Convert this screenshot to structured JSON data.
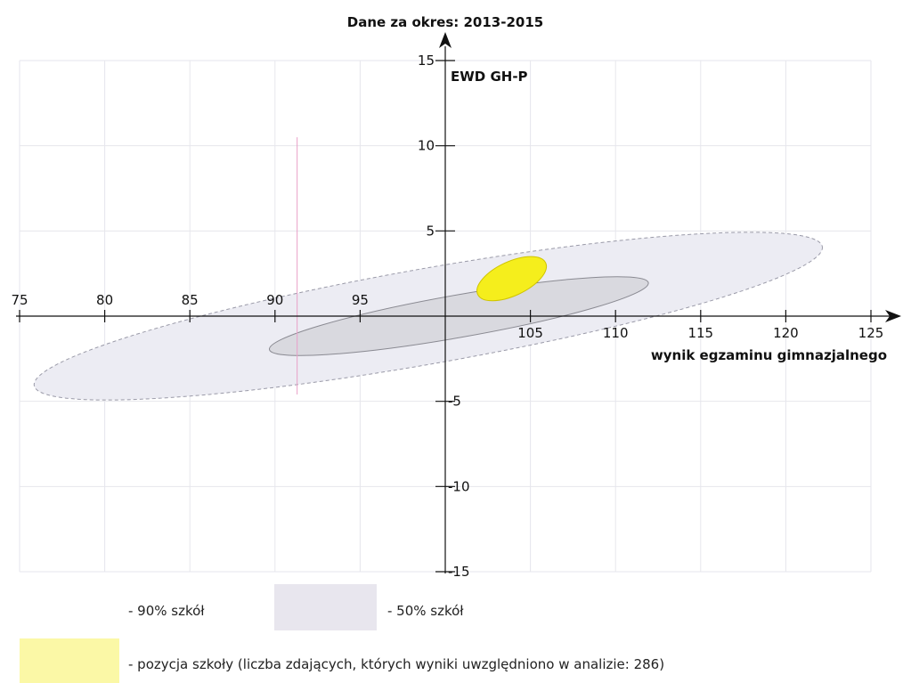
{
  "chart_data": {
    "type": "scatter",
    "title": "Dane za okres: 2013-2015",
    "xlabel": "wynik egzaminu gimnazjalnego",
    "ylabel": "EWD GH-P",
    "xlim": [
      75,
      125
    ],
    "ylim": [
      -15,
      15
    ],
    "x_ticks": [
      75,
      80,
      85,
      90,
      95,
      105,
      110,
      115,
      120,
      125
    ],
    "y_ticks": [
      15,
      10,
      5,
      -5,
      -10,
      -15
    ],
    "grid": true,
    "regions": [
      {
        "name": "90% szkół",
        "type": "ellipse",
        "cx": 99,
        "cy": 0,
        "semi_major_x": 23.5,
        "semi_minor_y": 2.8,
        "angle_deg": 10,
        "color": "#ececf3"
      },
      {
        "name": "50% szkół",
        "type": "ellipse",
        "cx": 100.8,
        "cy": 0,
        "semi_major_x": 11.3,
        "semi_minor_y": 1.25,
        "angle_deg": 10,
        "color": "#d9d9df"
      },
      {
        "name": "pozycja szkoły",
        "type": "ellipse",
        "cx": 103.9,
        "cy": 2.2,
        "semi_major_x": 2.2,
        "semi_minor_y": 1.0,
        "angle_deg": 25,
        "color": "#f5ee1c"
      }
    ],
    "marker_line_x": 91.3
  },
  "legend": {
    "item_90": "- 90% szkół",
    "item_50": "- 50% szkół",
    "item_school": "- pozycja szkoły (liczba zdających, których wyniki uwzględniono w analizie: 286)",
    "color_90": "#ececf3",
    "color_50": "#e8e6ee",
    "color_school": "#fbf8a6"
  }
}
